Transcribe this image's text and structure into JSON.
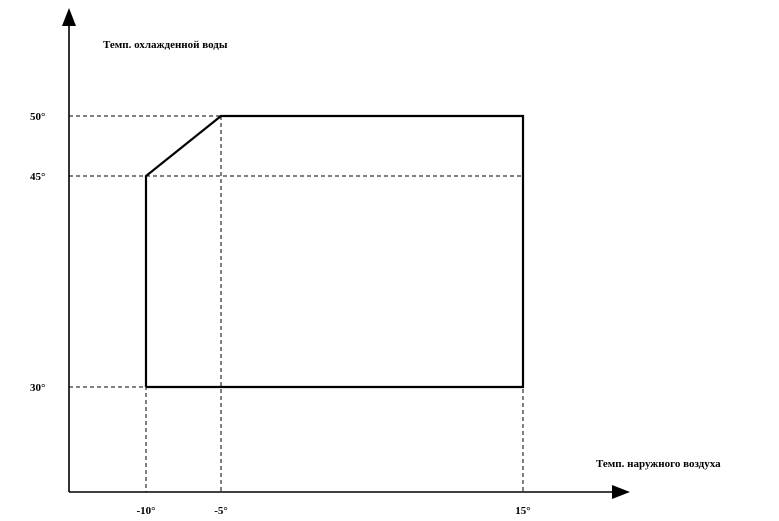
{
  "y_axis": {
    "label": "Темп. охлажденной воды"
  },
  "x_axis": {
    "label": "Темп. наружного воздуха"
  },
  "y_ticks": [
    {
      "value": 50,
      "label": "50°"
    },
    {
      "value": 45,
      "label": "45°"
    },
    {
      "value": 30,
      "label": "30°"
    }
  ],
  "x_ticks": [
    {
      "value": -10,
      "label": "-10°"
    },
    {
      "value": -5,
      "label": "-5°"
    },
    {
      "value": 15,
      "label": "15°"
    }
  ],
  "envelope": [
    [
      -10,
      30
    ],
    [
      -10,
      45
    ],
    [
      -5,
      50
    ],
    [
      15,
      50
    ],
    [
      15,
      30
    ]
  ]
}
